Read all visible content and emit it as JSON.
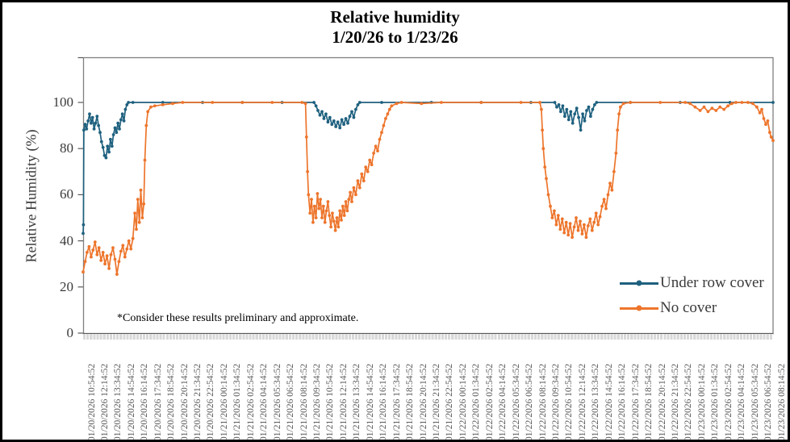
{
  "title": {
    "line1": "Relative humidity",
    "line2": "1/20/26 to 1/23/26"
  },
  "footnote": "*Consider these results preliminary and approximate.",
  "axes": {
    "y_label": "Relative Humidity (%)"
  },
  "colors": {
    "under_row_cover": "#1f617f",
    "no_cover": "#ed752c",
    "plot_border": "#808080",
    "axis": "#595959",
    "x_tick_label": "#595959",
    "tick_band": "#d9d9d9"
  },
  "chart_data": {
    "type": "line",
    "title": "Relative humidity 1/20/26 to 1/23/26",
    "xlabel": "",
    "ylabel": "Relative Humidity (%)",
    "ylim": [
      0,
      120
    ],
    "y_ticks": [
      0,
      20,
      40,
      60,
      80,
      100
    ],
    "grid": false,
    "legend_position": "inside lower right",
    "x_unit": "hours since 01/20/2026 10:54:52",
    "x_range_hours": [
      0,
      69.333
    ],
    "x_tick_labels": [
      "01/20/2026 10:54:52",
      "01/20/2026 12:14:52",
      "01/20/2026 13:34:52",
      "01/20/2026 14:54:52",
      "01/20/2026 16:14:52",
      "01/20/2026 17:34:52",
      "01/20/2026 18:54:52",
      "01/20/2026 20:14:52",
      "01/20/2026 21:34:52",
      "01/20/2026 22:54:52",
      "01/21/2026 00:14:52",
      "01/21/2026 01:34:52",
      "01/21/2026 02:54:52",
      "01/21/2026 04:14:52",
      "01/21/2026 05:34:52",
      "01/21/2026 06:54:52",
      "01/21/2026 08:14:52",
      "01/21/2026 09:34:52",
      "01/21/2026 10:54:52",
      "01/21/2026 12:14:52",
      "01/21/2026 13:34:52",
      "01/21/2026 14:54:52",
      "01/21/2026 16:14:52",
      "01/21/2026 17:34:52",
      "01/21/2026 18:54:52",
      "01/21/2026 20:14:52",
      "01/21/2026 21:34:52",
      "01/21/2026 22:54:52",
      "01/22/2026 00:14:52",
      "01/22/2026 01:34:52",
      "01/22/2026 02:54:52",
      "01/22/2026 04:14:52",
      "01/22/2026 05:34:52",
      "01/22/2026 06:54:52",
      "01/22/2026 08:14:52",
      "01/22/2026 09:34:52",
      "01/22/2026 10:54:52",
      "01/22/2026 12:14:52",
      "01/22/2026 13:34:52",
      "01/22/2026 14:54:52",
      "01/22/2026 16:14:52",
      "01/22/2026 17:34:52",
      "01/22/2026 18:54:52",
      "01/22/2026 20:14:52",
      "01/22/2026 21:34:52",
      "01/22/2026 22:54:52",
      "01/23/2026 00:14:52",
      "01/23/2026 01:34:52",
      "01/23/2026 02:54:52",
      "01/23/2026 04:14:52",
      "01/23/2026 05:34:52",
      "01/23/2026 06:54:52",
      "01/23/2026 08:14:52"
    ],
    "series": [
      {
        "name": "Under row cover",
        "color": "#1f617f",
        "points": [
          [
            0,
            43.2
          ],
          [
            0.03,
            47
          ],
          [
            0.07,
            88
          ],
          [
            0.2,
            90.5
          ],
          [
            0.35,
            88.5
          ],
          [
            0.5,
            92
          ],
          [
            0.65,
            95
          ],
          [
            0.8,
            91
          ],
          [
            0.95,
            93.5
          ],
          [
            1.1,
            88.5
          ],
          [
            1.25,
            91
          ],
          [
            1.4,
            94
          ],
          [
            1.55,
            90
          ],
          [
            1.7,
            87
          ],
          [
            1.85,
            83
          ],
          [
            2.0,
            80.5
          ],
          [
            2.15,
            77
          ],
          [
            2.3,
            76
          ],
          [
            2.45,
            81
          ],
          [
            2.6,
            78.5
          ],
          [
            2.75,
            84
          ],
          [
            2.9,
            81
          ],
          [
            3.05,
            86
          ],
          [
            3.2,
            89
          ],
          [
            3.35,
            87
          ],
          [
            3.5,
            91
          ],
          [
            3.65,
            88.5
          ],
          [
            3.8,
            92.5
          ],
          [
            3.95,
            95
          ],
          [
            4.1,
            92
          ],
          [
            4.25,
            97
          ],
          [
            4.4,
            99
          ],
          [
            4.55,
            100
          ],
          [
            5,
            100
          ],
          [
            8,
            100
          ],
          [
            12,
            100
          ],
          [
            16,
            100
          ],
          [
            20,
            100
          ],
          [
            23.2,
            100
          ],
          [
            23.4,
            98.5
          ],
          [
            23.6,
            96.5
          ],
          [
            23.8,
            94.5
          ],
          [
            24.0,
            96
          ],
          [
            24.2,
            93
          ],
          [
            24.4,
            95
          ],
          [
            24.6,
            91.5
          ],
          [
            24.8,
            93.5
          ],
          [
            25.0,
            90.5
          ],
          [
            25.2,
            92
          ],
          [
            25.4,
            89.5
          ],
          [
            25.6,
            91.5
          ],
          [
            25.8,
            89
          ],
          [
            26.0,
            92.5
          ],
          [
            26.2,
            90.5
          ],
          [
            26.4,
            93
          ],
          [
            26.6,
            91
          ],
          [
            26.8,
            94
          ],
          [
            27.0,
            96
          ],
          [
            27.2,
            93.5
          ],
          [
            27.4,
            97
          ],
          [
            27.6,
            99
          ],
          [
            27.8,
            100
          ],
          [
            30,
            100
          ],
          [
            35,
            100
          ],
          [
            40,
            100
          ],
          [
            45,
            100
          ],
          [
            47.4,
            100
          ],
          [
            47.6,
            98
          ],
          [
            47.8,
            99
          ],
          [
            48.0,
            96
          ],
          [
            48.2,
            98.5
          ],
          [
            48.4,
            94
          ],
          [
            48.6,
            97
          ],
          [
            48.8,
            92.5
          ],
          [
            49.0,
            96
          ],
          [
            49.2,
            91
          ],
          [
            49.4,
            95
          ],
          [
            49.6,
            97.5
          ],
          [
            49.8,
            93.5
          ],
          [
            50.0,
            88
          ],
          [
            50.2,
            95
          ],
          [
            50.4,
            92
          ],
          [
            50.6,
            96.5
          ],
          [
            50.8,
            98
          ],
          [
            51.0,
            94
          ],
          [
            51.2,
            97
          ],
          [
            51.4,
            99
          ],
          [
            51.6,
            100
          ],
          [
            55,
            100
          ],
          [
            60,
            100
          ],
          [
            65,
            100
          ],
          [
            69.33,
            100
          ]
        ]
      },
      {
        "name": "No cover",
        "color": "#ed752c",
        "points": [
          [
            0,
            26.5
          ],
          [
            0.2,
            31
          ],
          [
            0.4,
            35
          ],
          [
            0.6,
            37.5
          ],
          [
            0.8,
            33
          ],
          [
            1.0,
            36
          ],
          [
            1.2,
            39.5
          ],
          [
            1.4,
            34
          ],
          [
            1.6,
            37
          ],
          [
            1.8,
            31.5
          ],
          [
            2.0,
            35
          ],
          [
            2.2,
            30
          ],
          [
            2.4,
            33.5
          ],
          [
            2.6,
            28
          ],
          [
            2.8,
            34
          ],
          [
            3.0,
            37
          ],
          [
            3.2,
            32
          ],
          [
            3.4,
            25.5
          ],
          [
            3.6,
            31
          ],
          [
            3.8,
            35.5
          ],
          [
            4.0,
            38
          ],
          [
            4.2,
            33
          ],
          [
            4.4,
            36.5
          ],
          [
            4.6,
            40
          ],
          [
            4.8,
            36.5
          ],
          [
            5.0,
            41
          ],
          [
            5.2,
            52
          ],
          [
            5.35,
            45
          ],
          [
            5.5,
            58
          ],
          [
            5.65,
            48
          ],
          [
            5.8,
            62
          ],
          [
            5.95,
            50
          ],
          [
            6.1,
            56
          ],
          [
            6.2,
            75
          ],
          [
            6.35,
            90
          ],
          [
            6.5,
            96
          ],
          [
            6.8,
            98
          ],
          [
            7.2,
            98.5
          ],
          [
            8,
            99
          ],
          [
            9,
            99.5
          ],
          [
            10,
            100
          ],
          [
            13,
            100
          ],
          [
            16,
            100
          ],
          [
            19,
            100
          ],
          [
            22.0,
            100
          ],
          [
            22.35,
            99.5
          ],
          [
            22.45,
            85
          ],
          [
            22.55,
            70
          ],
          [
            22.65,
            60
          ],
          [
            22.8,
            52
          ],
          [
            22.95,
            58
          ],
          [
            23.1,
            48
          ],
          [
            23.25,
            55
          ],
          [
            23.4,
            50
          ],
          [
            23.55,
            60.5
          ],
          [
            23.7,
            54
          ],
          [
            23.85,
            58
          ],
          [
            24.0,
            50
          ],
          [
            24.15,
            55
          ],
          [
            24.3,
            48
          ],
          [
            24.45,
            53
          ],
          [
            24.6,
            57
          ],
          [
            24.75,
            51
          ],
          [
            24.9,
            46
          ],
          [
            25.05,
            52
          ],
          [
            25.2,
            48.5
          ],
          [
            25.35,
            44.5
          ],
          [
            25.5,
            50
          ],
          [
            25.65,
            46
          ],
          [
            25.8,
            53
          ],
          [
            25.95,
            49
          ],
          [
            26.1,
            55
          ],
          [
            26.25,
            51
          ],
          [
            26.4,
            57
          ],
          [
            26.55,
            53
          ],
          [
            26.7,
            58
          ],
          [
            26.85,
            61
          ],
          [
            27.0,
            57
          ],
          [
            27.2,
            63
          ],
          [
            27.4,
            60
          ],
          [
            27.6,
            66
          ],
          [
            27.8,
            63
          ],
          [
            28.0,
            69
          ],
          [
            28.2,
            66
          ],
          [
            28.4,
            72
          ],
          [
            28.6,
            70
          ],
          [
            28.8,
            75
          ],
          [
            29.0,
            73
          ],
          [
            29.2,
            78
          ],
          [
            29.4,
            81
          ],
          [
            29.6,
            79
          ],
          [
            29.8,
            84
          ],
          [
            30.0,
            87
          ],
          [
            30.2,
            90
          ],
          [
            30.4,
            93
          ],
          [
            30.6,
            95
          ],
          [
            30.8,
            97
          ],
          [
            31.0,
            98.5
          ],
          [
            31.5,
            99.5
          ],
          [
            32,
            100
          ],
          [
            34,
            99.5
          ],
          [
            36,
            100
          ],
          [
            40,
            100
          ],
          [
            44,
            100
          ],
          [
            45.9,
            100
          ],
          [
            46.05,
            97
          ],
          [
            46.15,
            88
          ],
          [
            46.25,
            80
          ],
          [
            46.4,
            72
          ],
          [
            46.55,
            67
          ],
          [
            46.75,
            60
          ],
          [
            46.95,
            55
          ],
          [
            47.15,
            50
          ],
          [
            47.35,
            53
          ],
          [
            47.55,
            47
          ],
          [
            47.75,
            51
          ],
          [
            47.95,
            45
          ],
          [
            48.15,
            49.5
          ],
          [
            48.35,
            43.5
          ],
          [
            48.55,
            48
          ],
          [
            48.75,
            42.5
          ],
          [
            48.95,
            47.5
          ],
          [
            49.15,
            41.5
          ],
          [
            49.35,
            46
          ],
          [
            49.55,
            50
          ],
          [
            49.75,
            44.5
          ],
          [
            49.95,
            48.5
          ],
          [
            50.15,
            43
          ],
          [
            50.35,
            47
          ],
          [
            50.55,
            41.5
          ],
          [
            50.75,
            46.5
          ],
          [
            50.95,
            49.5
          ],
          [
            51.15,
            44.5
          ],
          [
            51.35,
            48
          ],
          [
            51.55,
            52
          ],
          [
            51.75,
            47
          ],
          [
            51.95,
            50.5
          ],
          [
            52.15,
            55
          ],
          [
            52.35,
            58
          ],
          [
            52.55,
            54
          ],
          [
            52.75,
            60
          ],
          [
            52.95,
            65
          ],
          [
            53.15,
            62
          ],
          [
            53.35,
            70
          ],
          [
            53.55,
            78
          ],
          [
            53.7,
            88
          ],
          [
            53.85,
            95
          ],
          [
            54.0,
            98
          ],
          [
            54.3,
            99.5
          ],
          [
            55,
            100
          ],
          [
            58,
            100
          ],
          [
            60.5,
            100
          ],
          [
            61.0,
            99.5
          ],
          [
            61.5,
            98
          ],
          [
            62.0,
            96.5
          ],
          [
            62.4,
            98
          ],
          [
            62.8,
            96
          ],
          [
            63.2,
            97.5
          ],
          [
            63.6,
            96.5
          ],
          [
            64.0,
            98
          ],
          [
            64.4,
            97
          ],
          [
            64.8,
            98.5
          ],
          [
            65.2,
            99.5
          ],
          [
            65.6,
            100
          ],
          [
            66.2,
            100
          ],
          [
            66.8,
            100
          ],
          [
            67.3,
            99.5
          ],
          [
            67.7,
            98
          ],
          [
            68.0,
            95.5
          ],
          [
            68.2,
            97
          ],
          [
            68.4,
            93
          ],
          [
            68.6,
            90.5
          ],
          [
            68.8,
            92
          ],
          [
            69.0,
            87
          ],
          [
            69.15,
            85
          ],
          [
            69.33,
            83.5
          ]
        ]
      }
    ]
  }
}
